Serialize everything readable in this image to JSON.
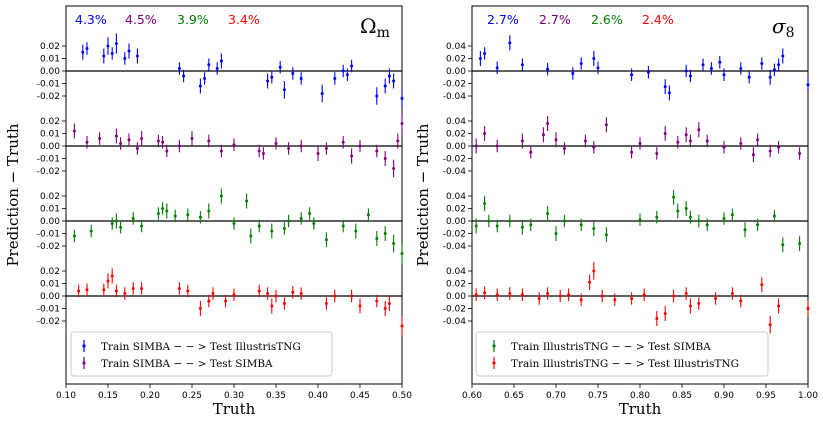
{
  "chart_data": [
    {
      "type": "scatter",
      "panel": "left",
      "parameter_symbol": "Ω",
      "parameter_subscript": "m",
      "xlabel": "Truth",
      "ylabel": "Prediction − Truth",
      "xlim": [
        0.1,
        0.5
      ],
      "x_ticks": [
        "0.10",
        "0.15",
        "0.20",
        "0.25",
        "0.30",
        "0.35",
        "0.40",
        "0.45",
        "0.50"
      ],
      "x_tick_values": [
        0.1,
        0.15,
        0.2,
        0.25,
        0.3,
        0.35,
        0.4,
        0.45,
        0.5
      ],
      "scale": 0.02,
      "band_tick_labels": [
        "0.02",
        "0.01",
        "0.00",
        "-0.01",
        "-0.02"
      ],
      "band_tick_values": [
        0.02,
        0.01,
        0.0,
        -0.01,
        -0.02
      ],
      "percent_labels": [
        "4.3%",
        "4.5%",
        "3.9%",
        "3.4%"
      ],
      "legend": [
        {
          "label": "Train SIMBA − − > Test IllustrisTNG",
          "color": "#0000ff"
        },
        {
          "label": "Train SIMBA − − > Test SIMBA",
          "color": "#800080"
        }
      ],
      "series": [
        {
          "name": "Train SIMBA --> Test IllustrisTNG",
          "color": "#0000ff",
          "x": [
            0.12,
            0.125,
            0.145,
            0.15,
            0.155,
            0.16,
            0.17,
            0.175,
            0.185,
            0.235,
            0.24,
            0.26,
            0.265,
            0.27,
            0.28,
            0.285,
            0.34,
            0.345,
            0.355,
            0.36,
            0.37,
            0.38,
            0.405,
            0.42,
            0.43,
            0.435,
            0.44,
            0.47,
            0.48,
            0.485,
            0.49,
            0.5
          ],
          "y": [
            0.015,
            0.018,
            0.012,
            0.02,
            0.014,
            0.022,
            0.01,
            0.016,
            0.012,
            0.002,
            -0.004,
            -0.012,
            -0.006,
            0.005,
            0.002,
            0.008,
            -0.008,
            -0.005,
            0.003,
            -0.015,
            -0.002,
            -0.006,
            -0.018,
            -0.006,
            0.0,
            -0.003,
            0.004,
            -0.02,
            -0.012,
            -0.004,
            -0.008,
            -0.022
          ],
          "err": [
            0.006,
            0.005,
            0.006,
            0.007,
            0.005,
            0.008,
            0.005,
            0.006,
            0.006,
            0.005,
            0.005,
            0.006,
            0.005,
            0.005,
            0.005,
            0.006,
            0.006,
            0.005,
            0.005,
            0.007,
            0.005,
            0.005,
            0.007,
            0.005,
            0.005,
            0.005,
            0.005,
            0.007,
            0.006,
            0.006,
            0.006,
            0.008
          ]
        },
        {
          "name": "Train SIMBA --> Test SIMBA",
          "color": "#800080",
          "x": [
            0.11,
            0.125,
            0.14,
            0.16,
            0.165,
            0.175,
            0.185,
            0.19,
            0.21,
            0.215,
            0.22,
            0.235,
            0.25,
            0.27,
            0.285,
            0.3,
            0.33,
            0.335,
            0.35,
            0.365,
            0.38,
            0.4,
            0.41,
            0.43,
            0.44,
            0.45,
            0.47,
            0.48,
            0.49,
            0.495,
            0.5
          ],
          "y": [
            0.012,
            0.003,
            0.006,
            0.008,
            0.002,
            0.005,
            -0.002,
            0.006,
            0.004,
            0.003,
            -0.004,
            0.0,
            0.006,
            0.004,
            -0.004,
            0.001,
            -0.004,
            -0.006,
            0.002,
            -0.002,
            0.0,
            -0.006,
            -0.002,
            0.003,
            -0.008,
            0.0,
            -0.004,
            -0.01,
            -0.018,
            0.004,
            0.018
          ],
          "err": [
            0.006,
            0.005,
            0.005,
            0.006,
            0.005,
            0.005,
            0.005,
            0.006,
            0.005,
            0.005,
            0.005,
            0.005,
            0.006,
            0.005,
            0.005,
            0.005,
            0.005,
            0.005,
            0.005,
            0.005,
            0.005,
            0.006,
            0.005,
            0.005,
            0.006,
            0.005,
            0.005,
            0.006,
            0.007,
            0.006,
            0.008
          ]
        },
        {
          "name": "Train IllustrisTNG --> Test SIMBA (Ω_m)",
          "color": "#008000",
          "x": [
            0.11,
            0.13,
            0.155,
            0.16,
            0.165,
            0.18,
            0.19,
            0.21,
            0.215,
            0.22,
            0.23,
            0.245,
            0.26,
            0.27,
            0.285,
            0.3,
            0.315,
            0.32,
            0.33,
            0.345,
            0.36,
            0.365,
            0.38,
            0.39,
            0.395,
            0.41,
            0.43,
            0.445,
            0.46,
            0.47,
            0.48,
            0.49,
            0.5
          ],
          "y": [
            -0.012,
            -0.008,
            -0.002,
            0.0,
            -0.005,
            0.002,
            -0.004,
            0.006,
            0.01,
            0.008,
            0.004,
            0.005,
            0.003,
            0.008,
            0.02,
            -0.002,
            0.016,
            -0.012,
            -0.004,
            -0.008,
            -0.006,
            0.0,
            0.002,
            0.006,
            -0.002,
            -0.015,
            -0.004,
            -0.008,
            0.005,
            -0.014,
            -0.01,
            -0.018,
            -0.026
          ],
          "err": [
            0.005,
            0.005,
            0.005,
            0.006,
            0.005,
            0.005,
            0.005,
            0.005,
            0.005,
            0.006,
            0.005,
            0.005,
            0.005,
            0.006,
            0.006,
            0.005,
            0.006,
            0.006,
            0.005,
            0.006,
            0.005,
            0.005,
            0.005,
            0.005,
            0.005,
            0.006,
            0.005,
            0.006,
            0.005,
            0.006,
            0.006,
            0.007,
            0.008
          ]
        },
        {
          "name": "Train IllustrisTNG --> Test IllustrisTNG (Ω_m)",
          "color": "#ff0000",
          "x": [
            0.115,
            0.125,
            0.145,
            0.15,
            0.155,
            0.16,
            0.17,
            0.18,
            0.19,
            0.235,
            0.245,
            0.26,
            0.27,
            0.275,
            0.29,
            0.3,
            0.33,
            0.34,
            0.345,
            0.35,
            0.36,
            0.37,
            0.38,
            0.41,
            0.42,
            0.44,
            0.45,
            0.47,
            0.48,
            0.485,
            0.5
          ],
          "y": [
            0.004,
            0.005,
            0.005,
            0.012,
            0.016,
            0.004,
            0.002,
            0.006,
            0.006,
            0.006,
            0.004,
            -0.01,
            -0.004,
            0.002,
            -0.004,
            0.001,
            0.004,
            0.002,
            -0.008,
            0.0,
            -0.006,
            0.003,
            0.002,
            -0.006,
            0.0,
            0.0,
            -0.008,
            -0.004,
            -0.01,
            -0.006,
            -0.024
          ],
          "err": [
            0.005,
            0.005,
            0.005,
            0.006,
            0.006,
            0.005,
            0.005,
            0.005,
            0.005,
            0.005,
            0.005,
            0.006,
            0.005,
            0.005,
            0.005,
            0.005,
            0.005,
            0.005,
            0.006,
            0.005,
            0.005,
            0.005,
            0.005,
            0.005,
            0.005,
            0.005,
            0.006,
            0.005,
            0.006,
            0.006,
            0.008
          ]
        }
      ]
    },
    {
      "type": "scatter",
      "panel": "right",
      "parameter_symbol": "σ",
      "parameter_subscript": "8",
      "xlabel": "Truth",
      "ylabel": "Prediction − Truth",
      "xlim": [
        0.6,
        1.0
      ],
      "x_ticks": [
        "0.60",
        "0.65",
        "0.70",
        "0.75",
        "0.80",
        "0.85",
        "0.90",
        "0.95",
        "1.00"
      ],
      "x_tick_values": [
        0.6,
        0.65,
        0.7,
        0.75,
        0.8,
        0.85,
        0.9,
        0.95,
        1.0
      ],
      "scale": 0.04,
      "band_tick_labels": [
        "0.04",
        "0.02",
        "0.00",
        "-0.02",
        "-0.04"
      ],
      "band_tick_values": [
        0.04,
        0.02,
        0.0,
        -0.02,
        -0.04
      ],
      "percent_labels": [
        "2.7%",
        "2.7%",
        "2.6%",
        "2.4%"
      ],
      "legend": [
        {
          "label": "Train IllustrisTNG − − > Test SIMBA",
          "color": "#008000"
        },
        {
          "label": "Train IllustrisTNG − − > Test IllustrisTNG",
          "color": "#ff0000"
        }
      ],
      "series": [
        {
          "name": "Train SIMBA --> Test IllustrisTNG",
          "color": "#0000ff",
          "x": [
            0.61,
            0.615,
            0.63,
            0.645,
            0.66,
            0.69,
            0.72,
            0.73,
            0.745,
            0.75,
            0.79,
            0.81,
            0.83,
            0.835,
            0.855,
            0.86,
            0.875,
            0.885,
            0.895,
            0.9,
            0.92,
            0.93,
            0.945,
            0.955,
            0.96,
            0.965,
            0.97,
            1.0
          ],
          "y": [
            0.02,
            0.028,
            0.005,
            0.045,
            0.01,
            0.003,
            -0.004,
            0.012,
            0.02,
            0.005,
            -0.006,
            -0.002,
            -0.025,
            -0.035,
            0.0,
            -0.008,
            0.01,
            0.004,
            0.014,
            -0.006,
            0.004,
            -0.01,
            0.012,
            -0.01,
            0.002,
            0.01,
            0.024,
            -0.022
          ],
          "err": [
            0.012,
            0.01,
            0.01,
            0.012,
            0.01,
            0.01,
            0.01,
            0.01,
            0.012,
            0.01,
            0.01,
            0.01,
            0.012,
            0.012,
            0.01,
            0.01,
            0.01,
            0.01,
            0.01,
            0.01,
            0.01,
            0.01,
            0.01,
            0.012,
            0.01,
            0.01,
            0.012,
            0.012
          ]
        },
        {
          "name": "Train SIMBA --> Test SIMBA",
          "color": "#800080",
          "x": [
            0.605,
            0.615,
            0.63,
            0.66,
            0.67,
            0.685,
            0.69,
            0.7,
            0.71,
            0.735,
            0.745,
            0.76,
            0.79,
            0.8,
            0.82,
            0.83,
            0.845,
            0.855,
            0.86,
            0.87,
            0.88,
            0.9,
            0.92,
            0.935,
            0.94,
            0.955,
            0.965,
            0.99
          ],
          "y": [
            0.0,
            0.02,
            0.0,
            0.008,
            -0.01,
            0.018,
            0.036,
            0.01,
            -0.004,
            0.008,
            -0.002,
            0.034,
            -0.01,
            0.004,
            -0.012,
            0.02,
            0.006,
            0.018,
            0.008,
            0.026,
            0.008,
            -0.002,
            0.004,
            -0.014,
            0.01,
            -0.008,
            -0.002,
            -0.012
          ],
          "err": [
            0.012,
            0.012,
            0.01,
            0.012,
            0.01,
            0.012,
            0.012,
            0.012,
            0.01,
            0.01,
            0.01,
            0.012,
            0.01,
            0.01,
            0.01,
            0.012,
            0.01,
            0.012,
            0.01,
            0.012,
            0.01,
            0.01,
            0.01,
            0.012,
            0.01,
            0.01,
            0.01,
            0.01
          ]
        },
        {
          "name": "Train IllustrisTNG --> Test SIMBA",
          "color": "#008000",
          "x": [
            0.605,
            0.615,
            0.62,
            0.63,
            0.645,
            0.66,
            0.67,
            0.69,
            0.7,
            0.71,
            0.73,
            0.745,
            0.76,
            0.8,
            0.82,
            0.84,
            0.845,
            0.855,
            0.86,
            0.87,
            0.88,
            0.9,
            0.91,
            0.925,
            0.94,
            0.96,
            0.97,
            0.99
          ],
          "y": [
            -0.008,
            0.028,
            0.0,
            -0.008,
            0.0,
            -0.01,
            -0.006,
            0.012,
            -0.02,
            0.0,
            -0.006,
            -0.012,
            -0.022,
            0.002,
            0.006,
            0.038,
            0.016,
            0.02,
            0.006,
            0.0,
            -0.006,
            0.004,
            0.01,
            -0.014,
            -0.006,
            0.008,
            -0.038,
            -0.036
          ],
          "err": [
            0.012,
            0.012,
            0.01,
            0.01,
            0.01,
            0.012,
            0.01,
            0.012,
            0.012,
            0.01,
            0.01,
            0.012,
            0.012,
            0.01,
            0.01,
            0.012,
            0.012,
            0.012,
            0.01,
            0.01,
            0.01,
            0.01,
            0.01,
            0.012,
            0.01,
            0.01,
            0.012,
            0.012
          ]
        },
        {
          "name": "Train IllustrisTNG --> Test IllustrisTNG",
          "color": "#ff0000",
          "x": [
            0.605,
            0.615,
            0.63,
            0.645,
            0.66,
            0.68,
            0.69,
            0.705,
            0.715,
            0.73,
            0.74,
            0.745,
            0.755,
            0.77,
            0.79,
            0.805,
            0.82,
            0.83,
            0.84,
            0.855,
            0.86,
            0.87,
            0.89,
            0.91,
            0.92,
            0.945,
            0.955,
            0.965,
            1.0
          ],
          "y": [
            0.002,
            0.005,
            0.002,
            0.004,
            0.002,
            -0.004,
            0.004,
            0.0,
            0.002,
            -0.006,
            0.022,
            0.04,
            0.0,
            -0.006,
            -0.004,
            0.002,
            -0.036,
            -0.028,
            0.0,
            0.004,
            -0.016,
            -0.012,
            -0.004,
            0.004,
            -0.008,
            0.018,
            -0.046,
            -0.016,
            -0.02
          ],
          "err": [
            0.01,
            0.01,
            0.01,
            0.01,
            0.01,
            0.01,
            0.01,
            0.01,
            0.01,
            0.01,
            0.012,
            0.014,
            0.01,
            0.01,
            0.01,
            0.01,
            0.012,
            0.012,
            0.01,
            0.01,
            0.012,
            0.01,
            0.01,
            0.01,
            0.01,
            0.012,
            0.014,
            0.012,
            0.012
          ]
        }
      ]
    }
  ]
}
